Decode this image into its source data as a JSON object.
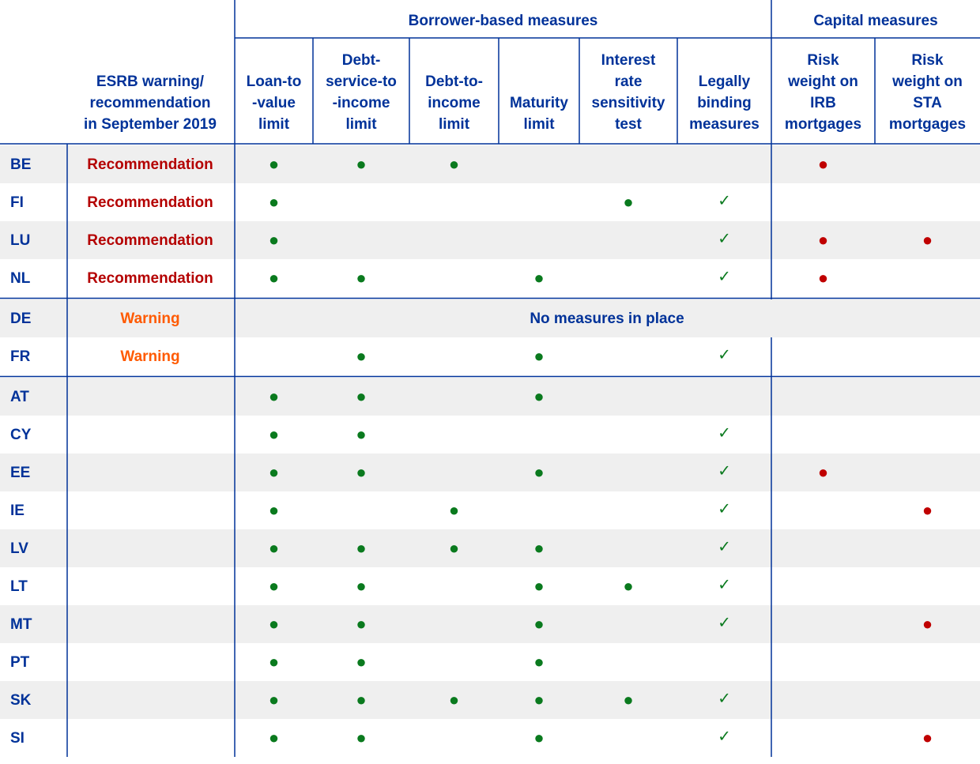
{
  "header": {
    "groups": [
      "Borrower-based measures",
      "Capital measures"
    ],
    "status_column": [
      "ESRB warning/",
      "recommendation",
      "in September 2019"
    ],
    "columns": [
      [
        "Loan-to",
        "-value",
        "limit"
      ],
      [
        "Debt-",
        "service-to",
        "-income",
        "limit"
      ],
      [
        "Debt-to-",
        "income",
        "limit"
      ],
      [
        "Maturity",
        "limit"
      ],
      [
        "Interest",
        "rate",
        "sensitivity",
        "test"
      ],
      [
        "Legally",
        "binding",
        "measures"
      ],
      [
        "Risk",
        "weight on",
        "IRB",
        "mortgages"
      ],
      [
        "Risk",
        "weight on",
        "STA",
        "mortgages"
      ]
    ]
  },
  "rows": [
    {
      "country": "BE",
      "status": "Recommendation",
      "status_color": "#b40000",
      "cells": [
        "●",
        "●",
        "●",
        null,
        null,
        null,
        "●",
        null
      ]
    },
    {
      "country": "FI",
      "status": "Recommendation",
      "status_color": "#b40000",
      "cells": [
        "●",
        null,
        null,
        null,
        "●",
        "✓",
        null,
        null
      ]
    },
    {
      "country": "LU",
      "status": "Recommendation",
      "status_color": "#b40000",
      "cells": [
        "●",
        null,
        null,
        null,
        null,
        "✓",
        "●",
        "●"
      ]
    },
    {
      "country": "NL",
      "status": "Recommendation",
      "status_color": "#b40000",
      "cells": [
        "●",
        "●",
        null,
        "●",
        null,
        "✓",
        "●",
        null
      ]
    },
    {
      "country": "DE",
      "status": "Warning",
      "status_color": "#ff5a00",
      "note": "No measures in place"
    },
    {
      "country": "FR",
      "status": "Warning",
      "status_color": "#ff5a00",
      "cells": [
        null,
        "●",
        null,
        "●",
        null,
        "✓",
        null,
        null
      ]
    },
    {
      "country": "AT",
      "cells": [
        "●",
        "●",
        null,
        "●",
        null,
        null,
        null,
        null
      ]
    },
    {
      "country": "CY",
      "cells": [
        "●",
        "●",
        null,
        null,
        null,
        "✓",
        null,
        null
      ]
    },
    {
      "country": "EE",
      "cells": [
        "●",
        "●",
        null,
        "●",
        null,
        "✓",
        "●",
        null
      ]
    },
    {
      "country": "IE",
      "cells": [
        "●",
        null,
        "●",
        null,
        null,
        "✓",
        null,
        "●"
      ]
    },
    {
      "country": "LV",
      "cells": [
        "●",
        "●",
        "●",
        "●",
        null,
        "✓",
        null,
        null
      ]
    },
    {
      "country": "LT",
      "cells": [
        "●",
        "●",
        null,
        "●",
        "●",
        "✓",
        null,
        null
      ]
    },
    {
      "country": "MT",
      "cells": [
        "●",
        "●",
        null,
        "●",
        null,
        "✓",
        null,
        "●"
      ]
    },
    {
      "country": "PT",
      "cells": [
        "●",
        "●",
        null,
        "●",
        null,
        null,
        null,
        null
      ]
    },
    {
      "country": "SK",
      "cells": [
        "●",
        "●",
        "●",
        "●",
        "●",
        "✓",
        null,
        null
      ]
    },
    {
      "country": "SI",
      "cells": [
        "●",
        "●",
        null,
        "●",
        null,
        "✓",
        null,
        "●"
      ]
    }
  ]
}
